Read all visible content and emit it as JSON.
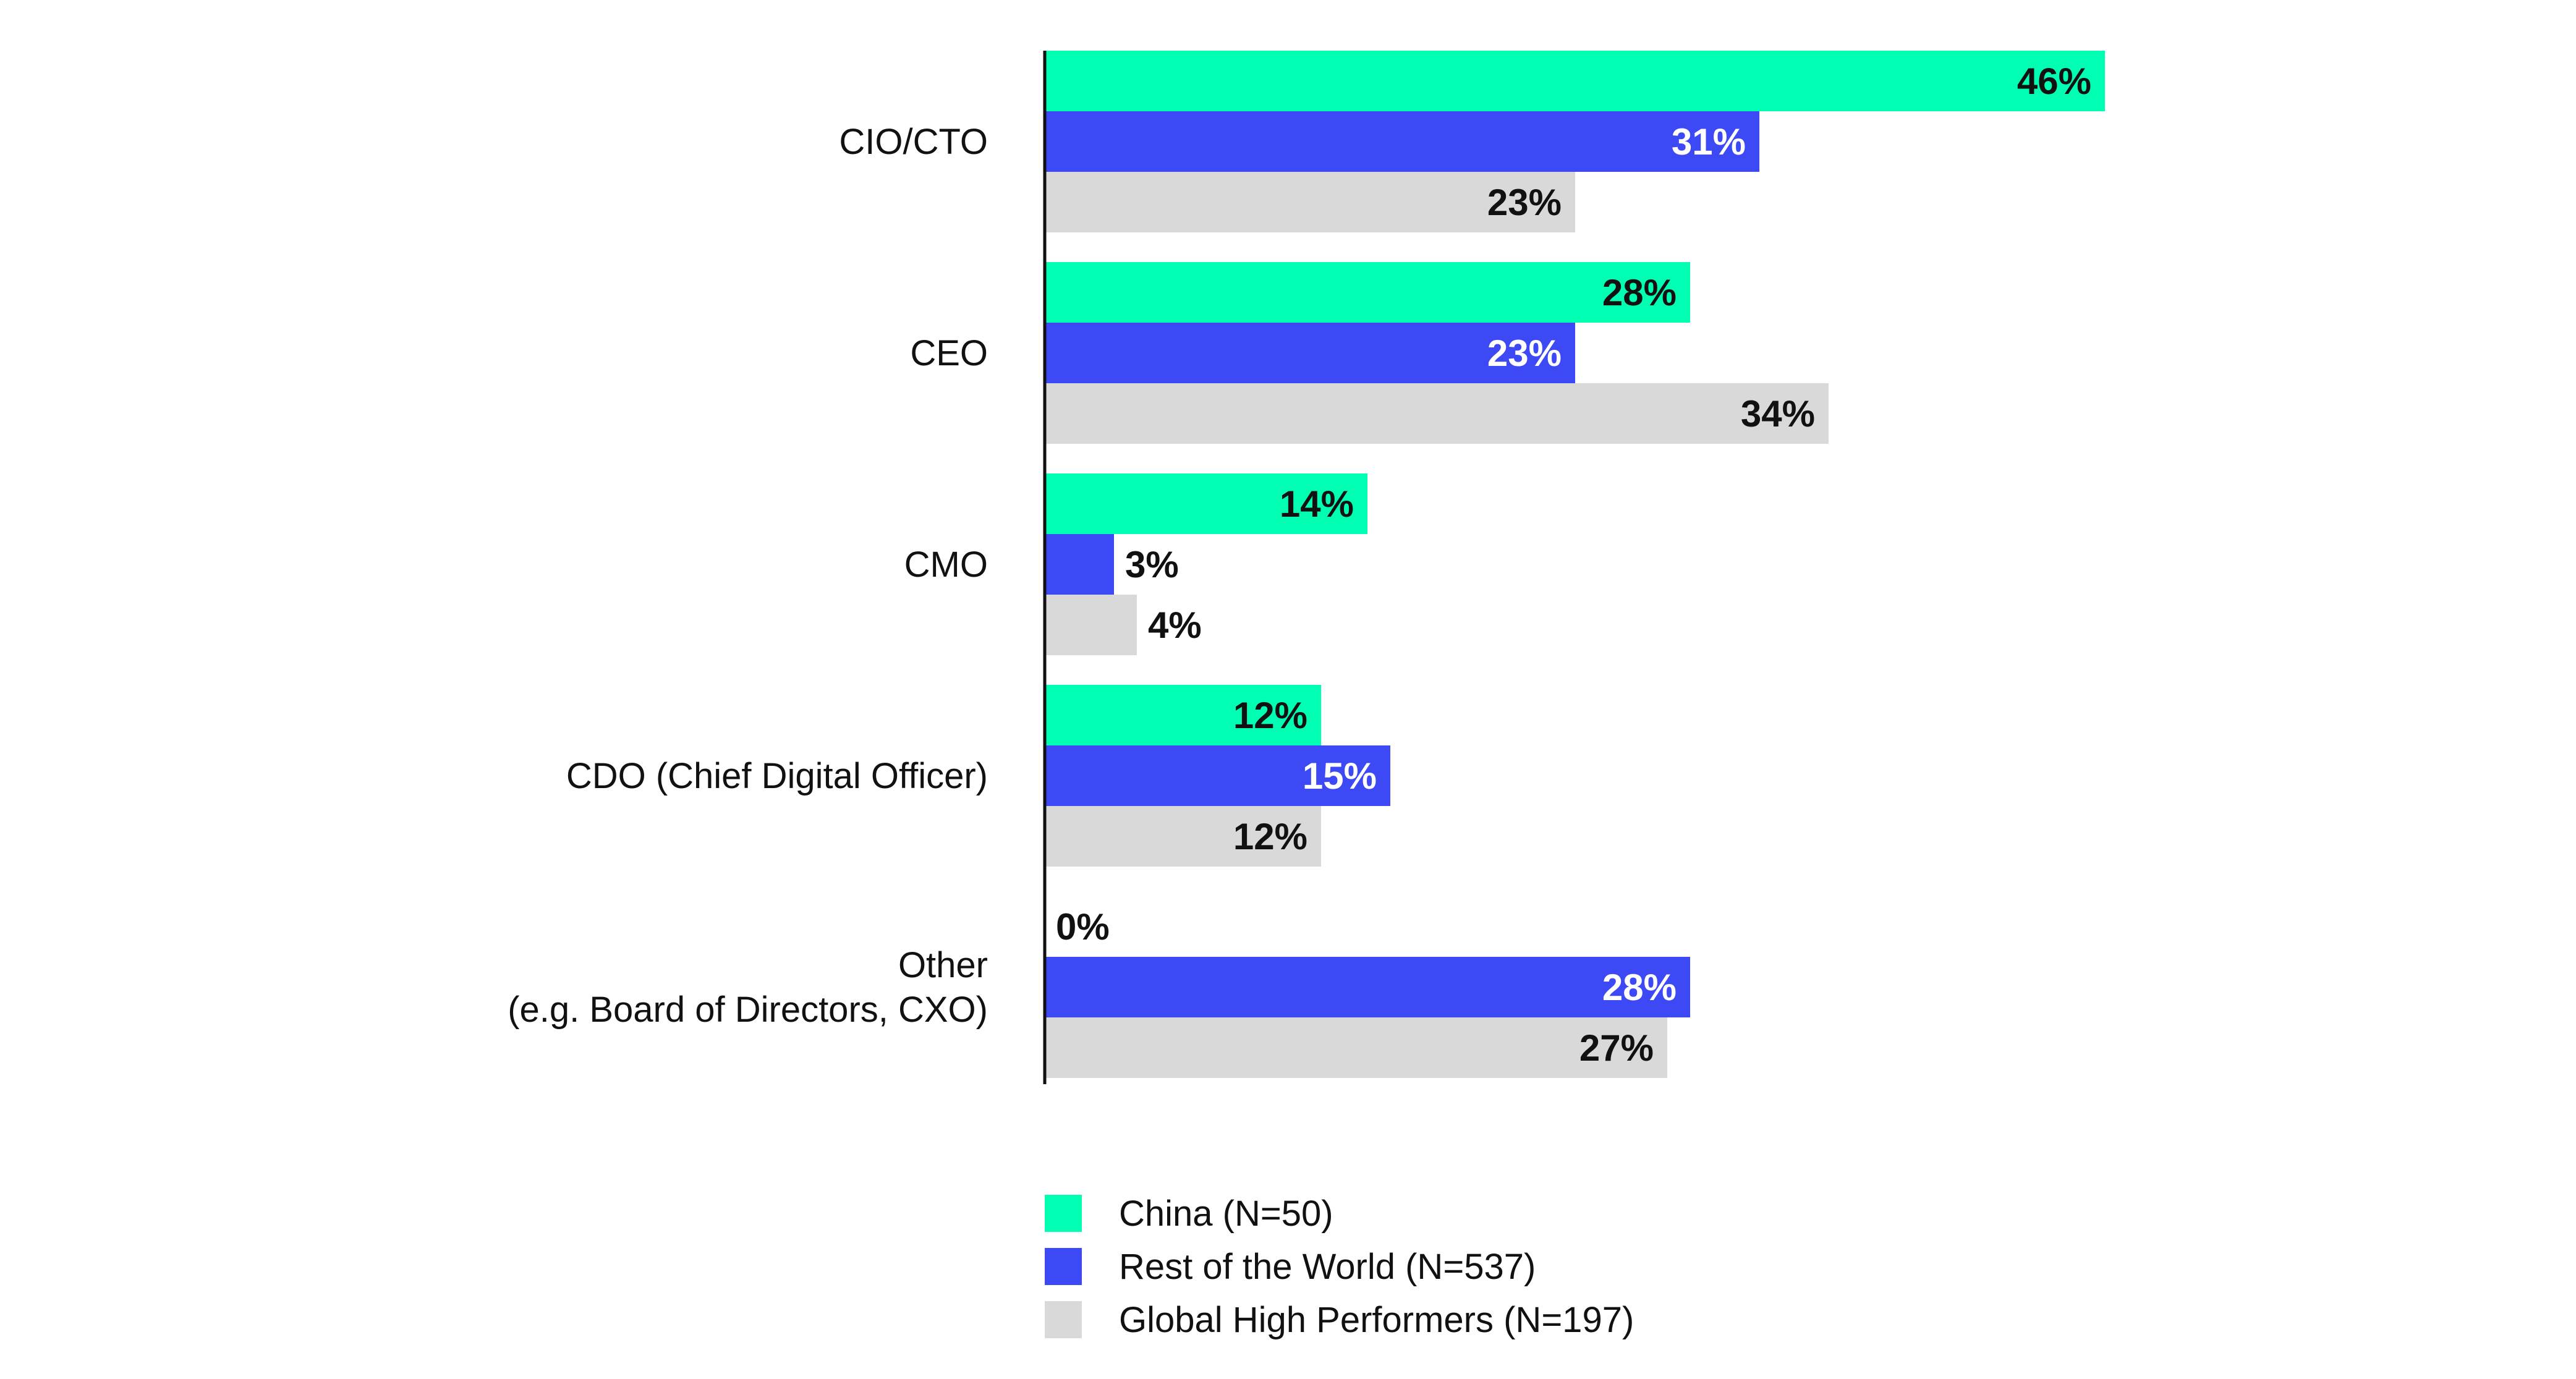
{
  "chart_data": {
    "type": "bar",
    "orientation": "horizontal",
    "categories": [
      [
        "CIO/CTO"
      ],
      [
        "CEO"
      ],
      [
        "CMO"
      ],
      [
        "CDO (Chief Digital Officer)"
      ],
      [
        "Other",
        "(e.g. Board of Directors, CXO)"
      ]
    ],
    "series": [
      {
        "name": "China (N=50)",
        "color": "#00ffb3",
        "label_color": "#111111",
        "values": [
          46,
          28,
          14,
          12,
          0
        ],
        "labels": [
          "46%",
          "28%",
          "14%",
          "12%",
          "0%"
        ]
      },
      {
        "name": "Rest of the World (N=537)",
        "color": "#3d49f5",
        "label_color": "#ffffff",
        "values": [
          31,
          23,
          3,
          15,
          28
        ],
        "labels": [
          "31%",
          "23%",
          "3%",
          "15%",
          "28%"
        ]
      },
      {
        "name": "Global High Performers (N=197)",
        "color": "#d9d9d9",
        "label_color": "#111111",
        "values": [
          23,
          34,
          4,
          12,
          27
        ],
        "labels": [
          "23%",
          "34%",
          "4%",
          "12%",
          "27%"
        ]
      }
    ],
    "xlim": [
      0,
      46
    ],
    "grid": false,
    "legend_position": "bottom"
  }
}
